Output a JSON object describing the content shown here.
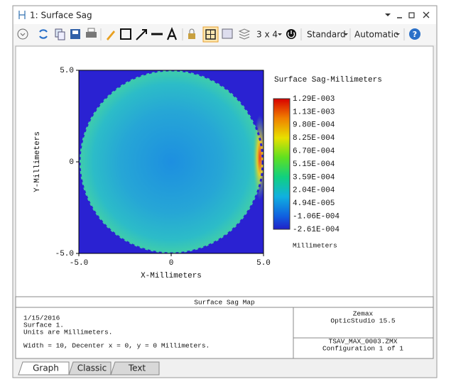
{
  "window": {
    "title": "1: Surface Sag"
  },
  "toolbar": {
    "layout": "3 x 4",
    "style": "Standard",
    "scale": "Automatic"
  },
  "plot": {
    "y_axis_label": "Y-Millimeters",
    "x_axis_label": "X-Millimeters",
    "y_tick_labels": [
      "5.0",
      "0",
      "-5.0"
    ],
    "x_tick_labels": [
      "-5.0",
      "0",
      "5.0"
    ],
    "colorbar": {
      "title": "Surface Sag-Millimeters",
      "units": "Millimeters",
      "labels": [
        "1.29E-003",
        "1.13E-003",
        "9.80E-004",
        "8.25E-004",
        "6.70E-004",
        "5.15E-004",
        "3.59E-004",
        "2.04E-004",
        "4.94E-005",
        "-1.06E-004",
        "-2.61E-004"
      ]
    }
  },
  "info": {
    "title": "Surface Sag Map",
    "lines": [
      "1/15/2016",
      "Surface 1.",
      "Units are Millimeters.",
      "Width = 10, Decenter x = 0, y = 0 Millimeters."
    ],
    "company": "Zemax",
    "product": "OpticStudio 15.5",
    "file": "TSAV_MAX_0003.ZMX",
    "configuration": "Configuration 1 of 1"
  },
  "tabs": [
    "Graph",
    "Classic",
    "Text"
  ]
}
